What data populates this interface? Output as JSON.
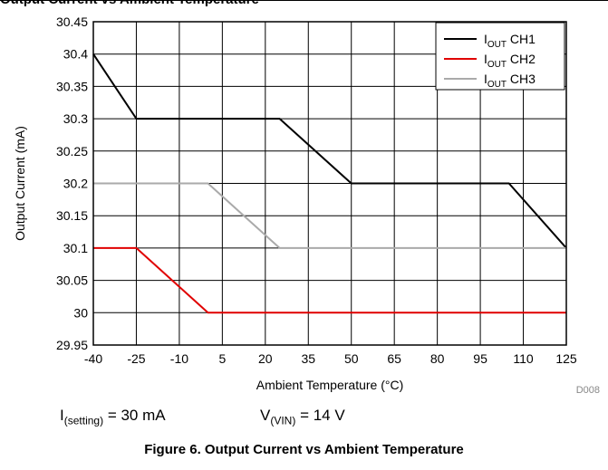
{
  "header": {
    "text": "Output Current vs Ambient Temperature"
  },
  "chart_data": {
    "type": "line",
    "xlabel": "Ambient Temperature (°C)",
    "ylabel": "Output Current (mA)",
    "xlim": [
      -40,
      125
    ],
    "ylim": [
      29.95,
      30.45
    ],
    "xticks": [
      -40,
      -25,
      -10,
      5,
      20,
      35,
      50,
      65,
      80,
      95,
      110,
      125
    ],
    "yticks": [
      "29.95",
      "30",
      "30.05",
      "30.1",
      "30.15",
      "30.2",
      "30.25",
      "30.3",
      "30.35",
      "30.4",
      "30.45"
    ],
    "grid": true,
    "legend_position": "top-right",
    "series": [
      {
        "name_main": "I",
        "name_sub": "OUT",
        "name_rest": " CH1",
        "color": "#000000",
        "x": [
          -40,
          -25,
          25,
          50,
          105,
          125
        ],
        "y": [
          30.4,
          30.3,
          30.3,
          30.2,
          30.2,
          30.1
        ]
      },
      {
        "name_main": "I",
        "name_sub": "OUT",
        "name_rest": " CH2",
        "color": "#e00000",
        "x": [
          -40,
          -25,
          0,
          125
        ],
        "y": [
          30.1,
          30.1,
          30.0,
          30.0
        ]
      },
      {
        "name_main": "I",
        "name_sub": "OUT",
        "name_rest": " CH3",
        "color": "#aaaaaa",
        "x": [
          -40,
          0,
          25,
          125
        ],
        "y": [
          30.2,
          30.2,
          30.1,
          30.1
        ]
      }
    ]
  },
  "figure_code": "D008",
  "conditions": {
    "setting": {
      "main": "I",
      "sub": "(setting)",
      "rest": " = 30 mA"
    },
    "vin": {
      "main": "V",
      "sub": "(VIN)",
      "rest": " = 14 V"
    }
  },
  "caption": "Figure 6. Output Current vs Ambient Temperature"
}
